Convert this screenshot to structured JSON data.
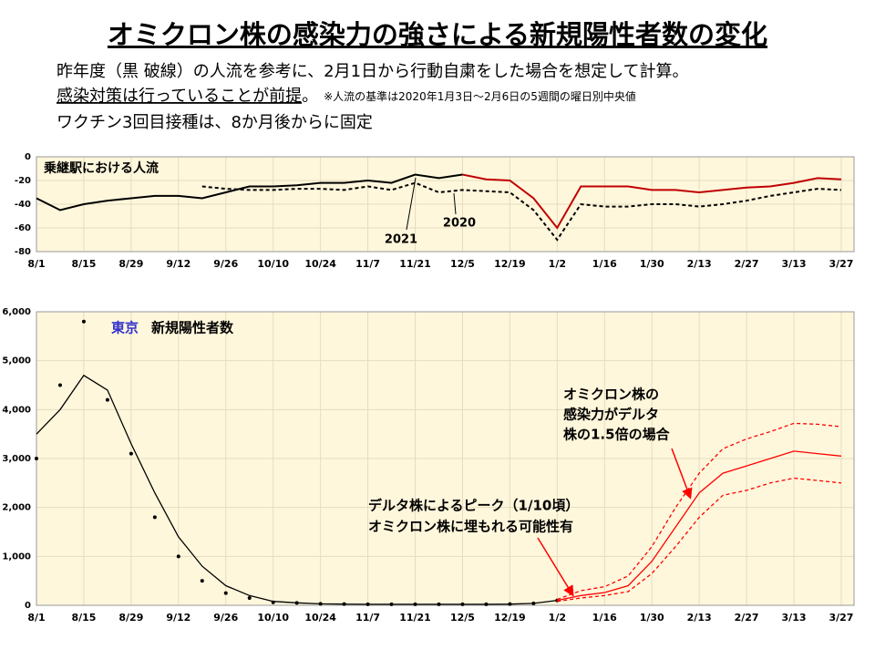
{
  "header": {
    "title": "オミクロン株の感染力の強さによる新規陽性者数の変化",
    "line1": "昨年度（黒 破線）の人流を参考に、2月1日から行動自粛をした場合を想定して計算。",
    "line2_underlined": "感染対策は行っていることが前提",
    "line2_rest": "。",
    "note": "※人流の基準は2020年1月3日～2月6日の5週間の曜日別中央値",
    "line3": "ワクチン3回目接種は、8か月後からに固定"
  },
  "chart_data": [
    {
      "type": "line",
      "title": "乗継駅における人流",
      "categories": [
        "8/1",
        null,
        "8/15",
        null,
        "8/29",
        null,
        "9/12",
        null,
        "9/26",
        null,
        "10/10",
        null,
        "10/24",
        null,
        "11/7",
        null,
        "11/21",
        null,
        "12/5",
        null,
        "12/19",
        null,
        "1/2",
        null,
        "1/16",
        null,
        "1/30",
        null,
        "2/13",
        null,
        "2/27",
        null,
        "3/13",
        null,
        "3/27"
      ],
      "ylim": [
        -80,
        0
      ],
      "yticks": [
        0,
        -20,
        -40,
        -60,
        -80
      ],
      "grid": true,
      "series": [
        {
          "name": "2021",
          "color": "#000000",
          "dash": false,
          "values": [
            -35,
            -45,
            -40,
            -37,
            -35,
            -33,
            -33,
            -35,
            -30,
            -25,
            -25,
            -24,
            -22,
            -22,
            -20,
            -22,
            -15,
            -18,
            -15,
            null,
            null,
            null,
            null,
            null,
            null,
            null,
            null,
            null,
            null,
            null,
            null,
            null,
            null,
            null,
            null
          ]
        },
        {
          "name": "2020",
          "color": "#000000",
          "dash": true,
          "values": [
            null,
            null,
            null,
            null,
            null,
            null,
            null,
            -25,
            -27,
            -28,
            -28,
            -27,
            -27,
            -28,
            -25,
            -28,
            -22,
            -30,
            -28,
            -29,
            -30,
            -45,
            -70,
            -40,
            -42,
            -42,
            -40,
            -40,
            -42,
            -40,
            -37,
            -33,
            -30,
            -27,
            -28
          ]
        },
        {
          "color": "#c00000",
          "dash": false,
          "values": [
            null,
            null,
            null,
            null,
            null,
            null,
            null,
            null,
            null,
            null,
            null,
            null,
            null,
            null,
            null,
            null,
            null,
            null,
            -15,
            -19,
            -20,
            -35,
            -60,
            -25,
            -25,
            -25,
            -28,
            -28,
            -30,
            -28,
            -26,
            -25,
            -22,
            -18,
            -19
          ]
        }
      ]
    },
    {
      "type": "line",
      "title_city": "東京",
      "title": "新規陽性者数",
      "categories": [
        "8/1",
        null,
        "8/15",
        null,
        "8/29",
        null,
        "9/12",
        null,
        "9/26",
        null,
        "10/10",
        null,
        "10/24",
        null,
        "11/7",
        null,
        "11/21",
        null,
        "12/5",
        null,
        "12/19",
        null,
        "1/2",
        null,
        "1/16",
        null,
        "1/30",
        null,
        "2/13",
        null,
        "2/27",
        null,
        "3/13",
        null,
        "3/27"
      ],
      "ylim": [
        0,
        6000
      ],
      "yticks": [
        {
          "value": 6000,
          "label": "6,000"
        },
        {
          "value": 5000,
          "label": "5,000"
        },
        {
          "value": 4000,
          "label": "4,000"
        },
        {
          "value": 3000,
          "label": "3,000"
        },
        {
          "value": 2000,
          "label": "2,000"
        },
        {
          "value": 1000,
          "label": "1,000"
        },
        0
      ],
      "grid": true,
      "series": [
        {
          "color": "#000000",
          "marker": true,
          "values": [
            3000,
            4500,
            5800,
            4200,
            3100,
            1800,
            1000,
            500,
            250,
            150,
            60,
            50,
            30,
            25,
            20,
            20,
            20,
            20,
            20,
            20,
            25,
            40,
            100,
            null,
            null,
            null,
            null,
            null,
            null,
            null,
            null,
            null,
            null,
            null,
            null
          ]
        },
        {
          "color": "#000000",
          "values": [
            3500,
            4000,
            4700,
            4400,
            3300,
            2300,
            1400,
            800,
            400,
            200,
            80,
            50,
            30,
            25,
            20,
            20,
            20,
            20,
            20,
            20,
            25,
            40,
            100,
            null,
            null,
            null,
            null,
            null,
            null,
            null,
            null,
            null,
            null,
            null,
            null
          ]
        },
        {
          "color": "#ff0000",
          "dash": true,
          "values": [
            null,
            null,
            null,
            null,
            null,
            null,
            null,
            null,
            null,
            null,
            null,
            null,
            null,
            null,
            null,
            null,
            null,
            null,
            null,
            null,
            null,
            null,
            120,
            300,
            380,
            600,
            1200,
            2000,
            2700,
            3200,
            3400,
            3550,
            3720,
            3700,
            3650
          ]
        },
        {
          "color": "#ff0000",
          "values": [
            null,
            null,
            null,
            null,
            null,
            null,
            null,
            null,
            null,
            null,
            null,
            null,
            null,
            null,
            null,
            null,
            null,
            null,
            null,
            null,
            null,
            null,
            100,
            200,
            260,
            400,
            900,
            1600,
            2300,
            2700,
            2850,
            3000,
            3150,
            3100,
            3050
          ]
        },
        {
          "color": "#ff0000",
          "dash": true,
          "values": [
            null,
            null,
            null,
            null,
            null,
            null,
            null,
            null,
            null,
            null,
            null,
            null,
            null,
            null,
            null,
            null,
            null,
            null,
            null,
            null,
            null,
            null,
            80,
            150,
            200,
            280,
            650,
            1200,
            1800,
            2250,
            2350,
            2500,
            2600,
            2550,
            2500
          ]
        }
      ],
      "annotations": [
        {
          "lines": [
            "オミクロン株の",
            "感染力がデルタ",
            "株の1.5倍の場合"
          ]
        },
        {
          "lines": [
            "デルタ株によるピーク（1/10頃）",
            "オミクロン株に埋もれる可能性有"
          ]
        }
      ]
    }
  ]
}
